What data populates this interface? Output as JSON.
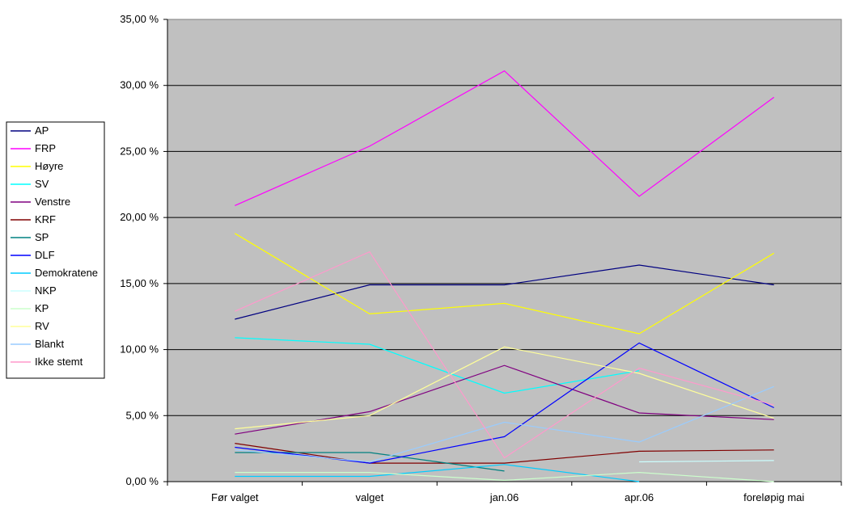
{
  "chart_data": {
    "type": "line",
    "categories": [
      "Før valget",
      "valget",
      "jan.06",
      "apr.06",
      "foreløpig mai"
    ],
    "ylim": [
      0,
      35
    ],
    "yticks": [
      "0,00 %",
      "5,00 %",
      "10,00 %",
      "15,00 %",
      "20,00 %",
      "25,00 %",
      "30,00 %",
      "35,00 %"
    ],
    "grid": true,
    "legend_position": "left",
    "title": "",
    "xlabel": "",
    "ylabel": "",
    "plot_background": "#c0c0c0",
    "series": [
      {
        "name": "AP",
        "color": "#000080",
        "values": [
          12.3,
          14.9,
          14.9,
          16.4,
          14.9
        ]
      },
      {
        "name": "FRP",
        "color": "#ff00ff",
        "values": [
          20.9,
          25.4,
          31.1,
          21.6,
          29.1
        ]
      },
      {
        "name": "Høyre",
        "color": "#ffff00",
        "values": [
          18.8,
          12.7,
          13.5,
          11.2,
          17.3
        ]
      },
      {
        "name": "SV",
        "color": "#00ffff",
        "values": [
          10.9,
          10.4,
          6.7,
          8.4,
          null
        ]
      },
      {
        "name": "Venstre",
        "color": "#800080",
        "values": [
          3.6,
          5.3,
          8.8,
          5.2,
          4.7
        ]
      },
      {
        "name": "KRF",
        "color": "#800000",
        "values": [
          2.9,
          1.4,
          1.4,
          2.3,
          2.4
        ]
      },
      {
        "name": "SP",
        "color": "#008080",
        "values": [
          2.2,
          2.2,
          0.8,
          null,
          null
        ]
      },
      {
        "name": "DLF",
        "color": "#0000ff",
        "values": [
          2.6,
          1.4,
          3.4,
          10.5,
          5.6
        ]
      },
      {
        "name": "Demokratene",
        "color": "#00ccff",
        "values": [
          0.4,
          0.4,
          1.3,
          0.0,
          null
        ]
      },
      {
        "name": "NKP",
        "color": "#ccffff",
        "values": [
          null,
          null,
          null,
          1.5,
          1.6
        ]
      },
      {
        "name": "KP",
        "color": "#ccffcc",
        "values": [
          0.7,
          0.7,
          0.1,
          0.7,
          0.0
        ]
      },
      {
        "name": "RV",
        "color": "#ffff99",
        "values": [
          4.0,
          5.0,
          10.2,
          8.2,
          4.8
        ]
      },
      {
        "name": "Blankt",
        "color": "#99ccff",
        "values": [
          2.4,
          1.5,
          4.5,
          3.0,
          7.2
        ]
      },
      {
        "name": "Ikke stemt",
        "color": "#ff99cc",
        "values": [
          12.9,
          17.4,
          1.8,
          8.6,
          5.8
        ]
      }
    ]
  }
}
